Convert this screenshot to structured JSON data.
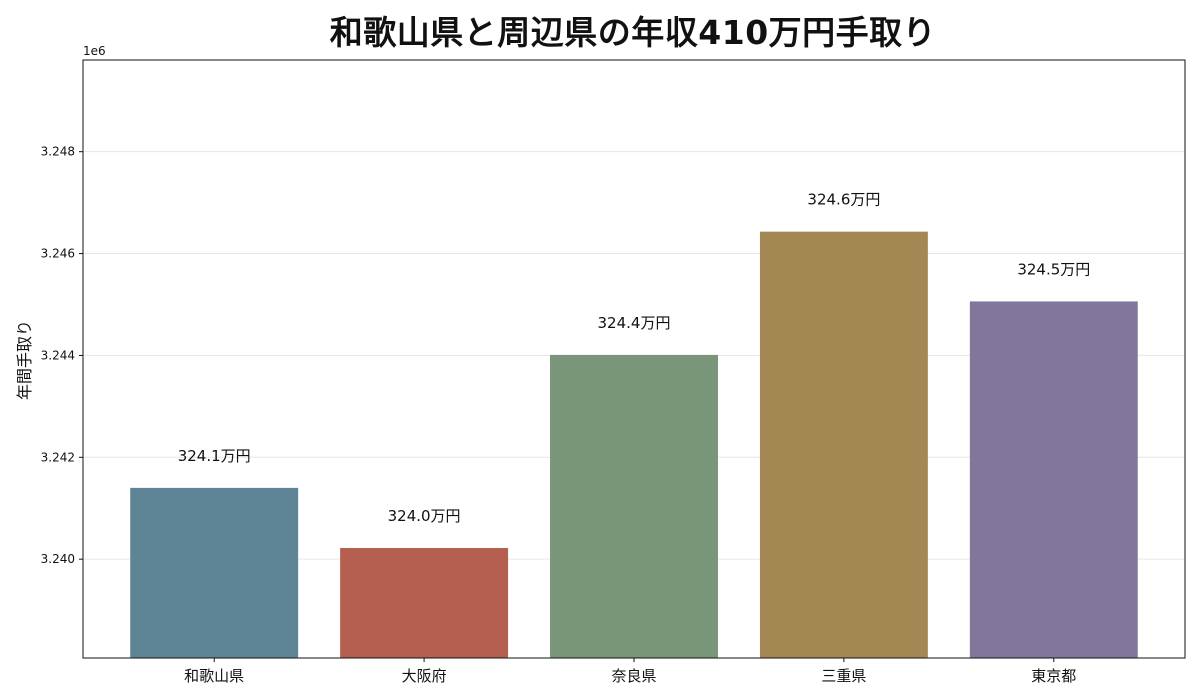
{
  "chart_data": {
    "type": "bar",
    "title": "和歌山県と周辺県の年収410万円手取り",
    "xlabel": "",
    "ylabel": "年間手取り",
    "offset_label": "1e6",
    "categories": [
      "和歌山県",
      "大阪府",
      "奈良県",
      "三重県",
      "東京都"
    ],
    "values": [
      3241400,
      3240220,
      3244010,
      3246430,
      3245060
    ],
    "data_labels": [
      "324.1万円",
      "324.0万円",
      "324.4万円",
      "324.6万円",
      "324.5万円"
    ],
    "colors": [
      "#5f8496",
      "#b55f50",
      "#79957a",
      "#a48854",
      "#82769b"
    ],
    "ylim": [
      3238060,
      3249800
    ],
    "yticks": [
      3240000,
      3242000,
      3244000,
      3246000,
      3248000
    ],
    "ytick_labels": [
      "3.240",
      "3.242",
      "3.244",
      "3.246",
      "3.248"
    ],
    "grid": true,
    "legend": "none"
  }
}
